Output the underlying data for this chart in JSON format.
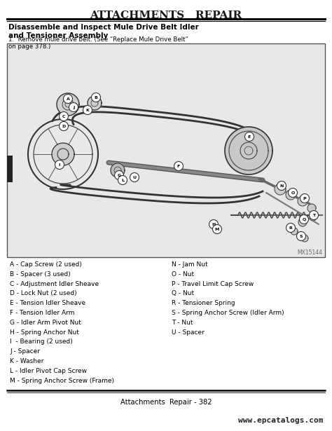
{
  "page_title": "ATTACHMENTS   REPAIR",
  "section_title": "Disassemble and Inspect Mule Drive Belt Idler\nand Tensioner Assembly",
  "step1": "1.  Remove mule drive belt. (See “Replace Mule Drive Belt”\non page 378.)",
  "diagram_label": "MX15144",
  "parts_left": [
    "A - Cap Screw (2 used)",
    "B - Spacer (3 used)",
    "C - Adjustment Idler Sheave",
    "D - Lock Nut (2 used)",
    "E - Tension Idler Sheave",
    "F - Tension Idler Arm",
    "G - Idler Arm Pivot Nut",
    "H - Spring Anchor Nut",
    "I  - Bearing (2 used)",
    "J - Spacer",
    "K - Washer",
    "L - Idler Pivot Cap Screw",
    "M - Spring Anchor Screw (Frame)"
  ],
  "parts_right": [
    "N - Jam Nut",
    "O - Nut",
    "P - Travel Limit Cap Screw",
    "Q - Nut",
    "R - Tensioner Spring",
    "S - Spring Anchor Screw (Idler Arm)",
    "T - Nut",
    "U - Spacer"
  ],
  "footer_center": "Attachments  Repair - 382",
  "footer_right": "www.epcatalogs.com",
  "bg_color": "#ffffff",
  "text_color": "#000000",
  "title_color": "#1a1a1a",
  "box_border_color": "#555555",
  "double_line_color": "#000000",
  "diagram_bg": "#e8e8e8"
}
